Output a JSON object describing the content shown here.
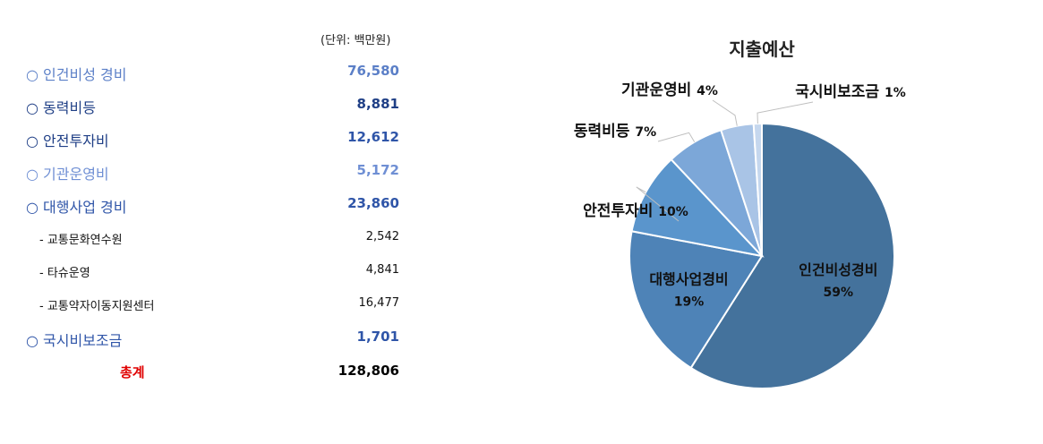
{
  "table": {
    "unit_label": "(단위: 백만원)",
    "rows": [
      {
        "label": "○  인건비성 경비",
        "value": "76,580",
        "color": "#5b7fc7",
        "kind": "main"
      },
      {
        "label": "○  동력비등",
        "value": "8,881",
        "color": "#1f3f86",
        "kind": "main"
      },
      {
        "label": "○  안전투자비",
        "value": "12,612",
        "color": "#1f3f86",
        "kind": "main"
      },
      {
        "label": "○  기관운영비",
        "value": "5,172",
        "color": "#6f8fd4",
        "kind": "main"
      },
      {
        "label": "○  대행사업 경비",
        "value": "23,860",
        "color": "#2f55a8",
        "kind": "main"
      },
      {
        "label": "-  교통문화연수원",
        "value": "2,542",
        "color": "#111111",
        "kind": "sub"
      },
      {
        "label": "-  타슈운영",
        "value": "4,841",
        "color": "#111111",
        "kind": "sub"
      },
      {
        "label": "-  교통약자이동지원센터",
        "value": "16,477",
        "color": "#111111",
        "kind": "sub"
      },
      {
        "label": "○  국시비보조금",
        "value": "1,701",
        "color": "#2f55a8",
        "kind": "main"
      }
    ],
    "total": {
      "label": "총계",
      "value": "128,806",
      "label_color": "#e00000",
      "value_color": "#000000"
    }
  },
  "chart_data": {
    "type": "pie",
    "title": "지출예산",
    "slices": [
      {
        "label": "인건비성경비",
        "pct_label": "59%",
        "value": 59,
        "color": "#44729c"
      },
      {
        "label": "대행사업경비",
        "pct_label": "19%",
        "value": 19,
        "color": "#4e83b7"
      },
      {
        "label": "안전투자비",
        "pct_label": "10%",
        "value": 10,
        "color": "#5a95cc"
      },
      {
        "label": "동력비등",
        "pct_label": "7%",
        "value": 7,
        "color": "#7ca7d8"
      },
      {
        "label": "기관운영비",
        "pct_label": "4%",
        "value": 4,
        "color": "#a9c4e6"
      },
      {
        "label": "국시비보조금",
        "pct_label": "1%",
        "value": 1,
        "color": "#c5d7ee"
      }
    ]
  }
}
